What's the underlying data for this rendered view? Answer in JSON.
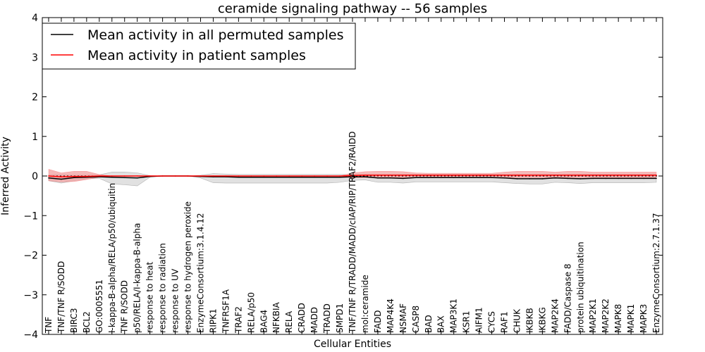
{
  "chart_data": {
    "type": "line",
    "title": "ceramide signaling pathway -- 56 samples",
    "xlabel": "Cellular Entities",
    "ylabel": "Inferred Activity",
    "ylim": [
      -4,
      4
    ],
    "yticks": [
      -4,
      -3,
      -2,
      -1,
      0,
      1,
      2,
      3,
      4
    ],
    "ytick_labels": [
      "−4",
      "−3",
      "−2",
      "−1",
      "0",
      "1",
      "2",
      "3",
      "4"
    ],
    "legend_position": "top-left",
    "categories": [
      "TNF",
      "TNF/TNF R/SODD",
      "BIRC3",
      "BCL2",
      "GO:0005551",
      "I-kappa-B-alpha/RELA/p50/ubiquitin",
      "TNF R/SODD",
      "p50/RELA/I-kappa-B-alpha",
      "response to heat",
      "response to radiation",
      "response to UV",
      "response to hydrogen peroxide",
      "EnzymeConsortium:3.1.4.12",
      "RIPK1",
      "TNFRSF1A",
      "TRAF2",
      "RELA/p50",
      "BAG4",
      "NFKBIA",
      "RELA",
      "CRADD",
      "MADD",
      "TRADD",
      "SMPD1",
      "TNF/TNF R/TRADD/MADD/cIAP/RIP/TRAF2/RAIDD",
      "mol:ceramide",
      "FADD",
      "MAP4K4",
      "NSMAF",
      "CASP8",
      "BAD",
      "BAX",
      "MAP3K1",
      "KSR1",
      "AIFM1",
      "CYCS",
      "RAF1",
      "CHUK",
      "IKBKB",
      "IKBKG",
      "MAP2K4",
      "FADD/Caspase 8",
      "protein ubiquitination",
      "MAP2K1",
      "MAP2K2",
      "MAPK8",
      "MAPK1",
      "MAPK3",
      "EnzymeConsortium:2.7.1.37"
    ],
    "series": [
      {
        "name": "Mean activity in all permuted samples",
        "color": "#000000",
        "band_color": "#c8c8c8",
        "values": [
          -0.05,
          -0.08,
          -0.04,
          -0.03,
          -0.02,
          -0.03,
          -0.04,
          -0.05,
          -0.01,
          0,
          0,
          0,
          -0.01,
          -0.02,
          -0.02,
          -0.03,
          -0.03,
          -0.03,
          -0.03,
          -0.03,
          -0.03,
          -0.03,
          -0.03,
          -0.03,
          -0.02,
          -0.02,
          -0.05,
          -0.05,
          -0.06,
          -0.04,
          -0.04,
          -0.04,
          -0.04,
          -0.04,
          -0.04,
          -0.04,
          -0.05,
          -0.07,
          -0.07,
          -0.07,
          -0.05,
          -0.06,
          -0.07,
          -0.06,
          -0.06,
          -0.06,
          -0.06,
          -0.06,
          -0.06
        ],
        "band_upper": [
          0.03,
          0.03,
          0.02,
          0.02,
          0.03,
          0.1,
          0.1,
          0.08,
          0.01,
          0,
          0,
          0,
          0.02,
          0.06,
          0.05,
          0.04,
          0.04,
          0.04,
          0.04,
          0.04,
          0.04,
          0.04,
          0.04,
          0.04,
          0.04,
          0.04,
          0.04,
          0.04,
          0.04,
          0.04,
          0.04,
          0.04,
          0.04,
          0.04,
          0.04,
          0.04,
          0.04,
          0.04,
          0.04,
          0.04,
          0.04,
          0.04,
          0.04,
          0.04,
          0.04,
          0.04,
          0.04,
          0.04,
          0.04
        ],
        "band_lower": [
          -0.12,
          -0.18,
          -0.12,
          -0.07,
          -0.06,
          -0.2,
          -0.22,
          -0.25,
          -0.03,
          0,
          0,
          0,
          -0.05,
          -0.17,
          -0.18,
          -0.18,
          -0.18,
          -0.18,
          -0.18,
          -0.18,
          -0.18,
          -0.18,
          -0.18,
          -0.16,
          -0.11,
          -0.1,
          -0.16,
          -0.16,
          -0.18,
          -0.15,
          -0.15,
          -0.15,
          -0.15,
          -0.15,
          -0.15,
          -0.15,
          -0.17,
          -0.19,
          -0.2,
          -0.2,
          -0.16,
          -0.17,
          -0.19,
          -0.17,
          -0.17,
          -0.17,
          -0.17,
          -0.17,
          -0.16
        ]
      },
      {
        "name": "Mean activity in patient samples",
        "color": "#ff0000",
        "band_color": "#f0a0a0",
        "values": [
          0,
          -0.02,
          -0.01,
          -0.01,
          0,
          0,
          0,
          0,
          0,
          0,
          0,
          0,
          0,
          0,
          0,
          0,
          0,
          0,
          0,
          0,
          0,
          0,
          0,
          0,
          0.01,
          0.02,
          0.02,
          0.02,
          0.02,
          0.02,
          0.02,
          0.02,
          0.02,
          0.02,
          0.02,
          0.02,
          0.02,
          0.02,
          0.02,
          0.02,
          0.02,
          0.02,
          0.02,
          0.02,
          0.02,
          0.02,
          0.02,
          0.02,
          0.02
        ],
        "band_upper": [
          0.17,
          0.08,
          0.12,
          0.12,
          0.04,
          0,
          0,
          0,
          0,
          0,
          0,
          0,
          0,
          0,
          0,
          0,
          0,
          0,
          0,
          0,
          0,
          0,
          0,
          0,
          0.08,
          0.11,
          0.12,
          0.12,
          0.11,
          0.08,
          0.07,
          0.07,
          0.07,
          0.07,
          0.07,
          0.07,
          0.1,
          0.12,
          0.12,
          0.12,
          0.1,
          0.12,
          0.12,
          0.1,
          0.1,
          0.1,
          0.1,
          0.1,
          0.1
        ],
        "band_lower": [
          -0.12,
          -0.15,
          -0.14,
          -0.09,
          -0.03,
          0,
          0,
          0,
          0,
          0,
          0,
          0,
          0,
          0,
          0,
          0,
          0,
          0,
          0,
          0,
          0,
          0,
          0,
          0,
          -0.04,
          -0.04,
          -0.04,
          -0.04,
          -0.04,
          -0.04,
          -0.04,
          -0.04,
          -0.04,
          -0.04,
          -0.04,
          -0.04,
          -0.04,
          -0.04,
          -0.04,
          -0.04,
          -0.04,
          -0.04,
          -0.04,
          -0.04,
          -0.04,
          -0.04,
          -0.04,
          -0.04,
          -0.04
        ]
      }
    ]
  }
}
